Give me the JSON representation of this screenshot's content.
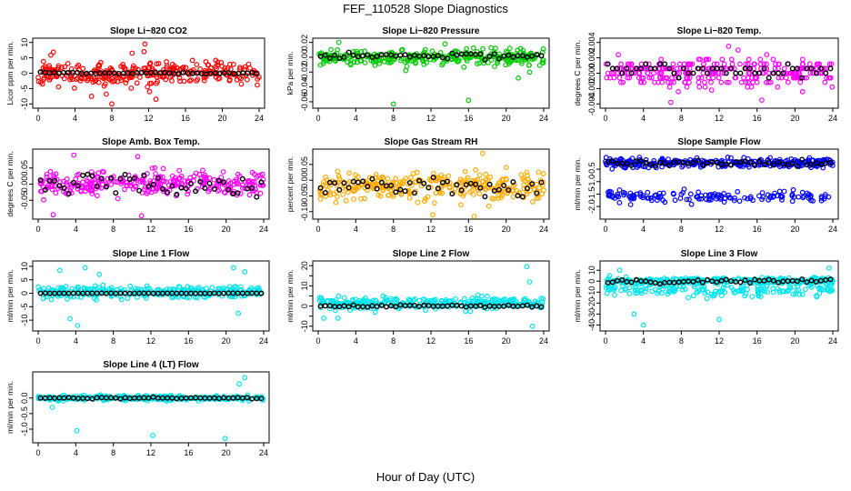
{
  "figure": {
    "title": "FEF_110528  Slope Diagnostics",
    "xlabel": "Hour of Day (UTC)"
  },
  "chart_data": [
    {
      "type": "scatter",
      "title": "Slope Li−820 CO2",
      "ylabel": "Licor ppm per min.",
      "xlim": [
        0,
        24
      ],
      "xticks": [
        0,
        4,
        8,
        12,
        16,
        20,
        24
      ],
      "ylim": [
        -10.5,
        10.5
      ],
      "yticks": [
        -10,
        -5,
        0,
        5,
        10
      ],
      "yticklabels": [
        "-10",
        "-5",
        "0",
        "5",
        "10"
      ],
      "color": "#ff0000",
      "center": 0,
      "spread": 3.5,
      "outliers": [
        [
          8,
          -10
        ],
        [
          11.6,
          9.5
        ],
        [
          5.8,
          -7.5
        ],
        [
          12.8,
          -8.5
        ],
        [
          10.2,
          6.5
        ],
        [
          7.4,
          -6.8
        ],
        [
          12.1,
          -6
        ],
        [
          11.5,
          7
        ]
      ],
      "black": {
        "center": 0,
        "spread": 0.3
      },
      "seed": 11
    },
    {
      "type": "scatter",
      "title": "Slope Li−820 Pressure",
      "ylabel": "kPa per min.",
      "xlim": [
        0,
        24
      ],
      "xticks": [
        0,
        4,
        8,
        12,
        16,
        20,
        24
      ],
      "ylim": [
        -0.065,
        0.022
      ],
      "yticks": [
        -0.06,
        -0.04,
        -0.02,
        0,
        0.02
      ],
      "yticklabels": [
        "-0.06",
        "-0.04",
        "-0.02",
        "0.00",
        "0.02"
      ],
      "color": "#00cc00",
      "center": 0.0,
      "spread": 0.009,
      "outliers": [
        [
          8,
          -0.063
        ],
        [
          16,
          -0.058
        ],
        [
          21.3,
          -0.028
        ],
        [
          2.2,
          0.02
        ],
        [
          13.5,
          0.018
        ],
        [
          22.5,
          -0.02
        ]
      ],
      "black": {
        "center": 0.002,
        "spread": 0.004
      },
      "seed": 23
    },
    {
      "type": "scatter",
      "title": "Slope Li−820 Temp.",
      "ylabel": "degrees C per min.",
      "xlim": [
        0,
        24
      ],
      "xticks": [
        0,
        4,
        8,
        12,
        16,
        20,
        24
      ],
      "ylim": [
        -0.0042,
        0.0042
      ],
      "yticks": [
        -0.004,
        -0.002,
        0,
        0.002,
        0.004
      ],
      "yticklabels": [
        "-0.004",
        "-0.002",
        "0.000",
        "0.002",
        "0.004"
      ],
      "color": "#ff00ff",
      "center": 0.0,
      "spread": 0.0016,
      "quant": 0.0006,
      "outliers": [
        [
          6.9,
          -0.0038
        ],
        [
          11.2,
          -0.0022
        ],
        [
          13,
          0.0035
        ],
        [
          16.5,
          -0.0035
        ],
        [
          14,
          0.003
        ]
      ],
      "black": {
        "center": 0.0004,
        "spread": 0.0009
      },
      "seed": 37
    },
    {
      "type": "scatter",
      "title": "Slope Amb. Box Temp.",
      "ylabel": "degrees C per min.",
      "xlim": [
        0,
        24
      ],
      "xticks": [
        0,
        4,
        8,
        12,
        16,
        20,
        24
      ],
      "ylim": [
        -0.1,
        0.1
      ],
      "yticks": [
        -0.05,
        0,
        0.05
      ],
      "yticklabels": [
        "-0.05",
        "0.00",
        "0.05"
      ],
      "color": "#ff00ff",
      "center": 0.0,
      "spread": 0.035,
      "outliers": [
        [
          1.6,
          -0.095
        ],
        [
          11,
          -0.098
        ],
        [
          3.8,
          0.09
        ],
        [
          10.6,
          0.085
        ]
      ],
      "black": {
        "center": 0.0,
        "spread": 0.035
      },
      "seed": 41
    },
    {
      "type": "scatter",
      "title": "Slope Gas Stream RH",
      "ylabel": "percent per min.",
      "xlim": [
        0,
        24
      ],
      "xticks": [
        0,
        4,
        8,
        12,
        16,
        20,
        24
      ],
      "ylim": [
        -0.115,
        0.09
      ],
      "yticks": [
        -0.1,
        -0.05,
        0,
        0.05
      ],
      "yticklabels": [
        "-0.10",
        "-0.05",
        "0.00",
        "0.05"
      ],
      "color": "#ffaa00",
      "center": -0.02,
      "spread": 0.04,
      "outliers": [
        [
          17.5,
          0.085
        ],
        [
          12.2,
          -0.11
        ],
        [
          16.6,
          -0.115
        ]
      ],
      "black": {
        "center": -0.02,
        "spread": 0.03
      },
      "seed": 53
    },
    {
      "type": "scatter",
      "title": "Slope Sample Flow",
      "ylabel": "ml/min per min.",
      "xlim": [
        0,
        24
      ],
      "xticks": [
        0,
        4,
        8,
        12,
        16,
        20,
        24
      ],
      "ylim": [
        -2.4,
        0.2
      ],
      "yticks": [
        -2,
        -1.5,
        -1,
        -0.5
      ],
      "yticklabels": [
        "-2.0",
        "-1.5",
        "-1.0",
        "-0.5"
      ],
      "color": "#0000ff",
      "center": -0.25,
      "spread": 0.15,
      "band2": {
        "center": -1.6,
        "spread": 0.2,
        "count": 140
      },
      "outliers": [
        [
          8.3,
          -1.3
        ],
        [
          9,
          -1.5
        ]
      ],
      "black": {
        "center": -0.25,
        "spread": 0.12
      },
      "seed": 67
    },
    {
      "type": "scatter",
      "title": "Slope Line 1 Flow",
      "ylabel": "ml/min per min.",
      "xlim": [
        0,
        24
      ],
      "xticks": [
        0,
        4,
        8,
        12,
        16,
        20,
        24
      ],
      "ylim": [
        -13,
        11
      ],
      "yticks": [
        -10,
        -5,
        0,
        5,
        10
      ],
      "yticklabels": [
        "-10",
        "-5",
        "0",
        "5",
        "10"
      ],
      "color": "#00e5ee",
      "center": 0.5,
      "spread": 2,
      "outliers": [
        [
          4.2,
          -12
        ],
        [
          3.4,
          -9.5
        ],
        [
          5,
          9.5
        ],
        [
          2.3,
          8.5
        ],
        [
          6.5,
          7
        ],
        [
          20.8,
          9.5
        ],
        [
          21.3,
          -7.5
        ],
        [
          22,
          8
        ]
      ],
      "black": {
        "center": 0,
        "spread": 0.05
      },
      "seed": 71
    },
    {
      "type": "scatter",
      "title": "Slope Line 2 Flow",
      "ylabel": "ml/min per min.",
      "xlim": [
        0,
        24
      ],
      "xticks": [
        0,
        4,
        8,
        12,
        16,
        20,
        24
      ],
      "ylim": [
        -11,
        21
      ],
      "yticks": [
        -10,
        -5,
        0,
        5,
        10,
        15,
        20
      ],
      "yticklabels": [
        "-10",
        "",
        "0",
        "",
        "10",
        "",
        "20"
      ],
      "color": "#00e5ee",
      "center": 1.5,
      "spread": 2.5,
      "outliers": [
        [
          22.2,
          19.5
        ],
        [
          22.8,
          -10
        ],
        [
          22.5,
          12
        ],
        [
          2.1,
          -6
        ],
        [
          0.6,
          -6
        ]
      ],
      "black": {
        "center": 0,
        "spread": 0.6
      },
      "seed": 83
    },
    {
      "type": "scatter",
      "title": "Slope Line 3 Flow",
      "ylabel": "ml/min per min.",
      "xlim": [
        0,
        24
      ],
      "xticks": [
        0,
        4,
        8,
        12,
        16,
        20,
        24
      ],
      "ylim": [
        -43,
        16
      ],
      "yticks": [
        -40,
        -30,
        -20,
        -10,
        0,
        10
      ],
      "yticklabels": [
        "-40",
        "-30",
        "-20",
        "-10",
        "0",
        "10"
      ],
      "color": "#00e5ee",
      "center": 0,
      "spread": 3,
      "band2": {
        "center": -8,
        "spread": 6,
        "count": 160
      },
      "outliers": [
        [
          4,
          -40
        ],
        [
          3,
          -30
        ],
        [
          12,
          -35
        ],
        [
          23.6,
          12
        ],
        [
          1.5,
          10
        ]
      ],
      "black": {
        "center": 0,
        "spread": 2
      },
      "seed": 97
    },
    {
      "type": "scatter",
      "title": "Slope Line 4 (LT) Flow",
      "ylabel": "ml/min per min.",
      "xlim": [
        0,
        24
      ],
      "xticks": [
        0,
        4,
        8,
        12,
        16,
        20,
        24
      ],
      "ylim": [
        -1.35,
        0.75
      ],
      "yticks": [
        -1,
        -0.5,
        0
      ],
      "yticklabels": [
        "-1.0",
        "-0.5",
        "0.0"
      ],
      "color": "#00e5ee",
      "center": 0.0,
      "spread": 0.07,
      "outliers": [
        [
          4.1,
          -1.05
        ],
        [
          12.2,
          -1.2
        ],
        [
          19.9,
          -1.3
        ],
        [
          22,
          0.65
        ],
        [
          21.4,
          0.45
        ],
        [
          1.5,
          -0.3
        ]
      ],
      "black": {
        "center": 0.0,
        "spread": 0.02
      },
      "seed": 101
    }
  ]
}
